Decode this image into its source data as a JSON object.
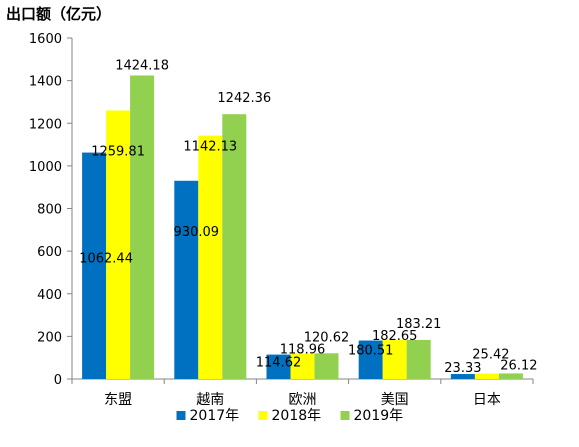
{
  "chart_data": {
    "type": "bar",
    "ylabel": "出口额（亿元）",
    "categories": [
      "东盟",
      "越南",
      "欧洲",
      "美国",
      "日本"
    ],
    "series": [
      {
        "name": "2017年",
        "color": "#0070C0",
        "values": [
          1062.44,
          930.09,
          114.62,
          180.51,
          23.33
        ]
      },
      {
        "name": "2018年",
        "color": "#FFFF00",
        "values": [
          1259.81,
          1142.13,
          118.96,
          182.65,
          25.42
        ]
      },
      {
        "name": "2019年",
        "color": "#92D050",
        "values": [
          1424.18,
          1242.36,
          120.62,
          183.21,
          26.12
        ]
      }
    ],
    "ylim": [
      0,
      1600
    ],
    "yticks": [
      0,
      200,
      400,
      600,
      800,
      1000,
      1200,
      1400,
      1600
    ],
    "grid": false,
    "legend": "bottom"
  }
}
